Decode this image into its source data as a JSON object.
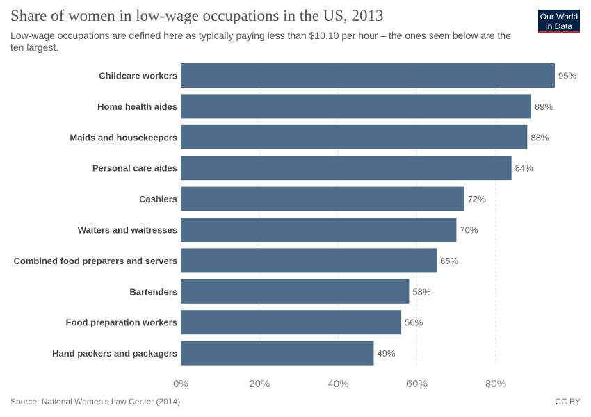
{
  "header": {
    "title": "Share of women in low-wage occupations in the US, 2013",
    "subtitle": "Low-wage occupations are defined here as typically paying less than $10.10 per hour – the ones seen below are the ten largest.",
    "logo_line1": "Our World",
    "logo_line2": "in Data"
  },
  "footer": {
    "source": "Source: National Women's Law Center (2014)",
    "license": "CC BY"
  },
  "colors": {
    "bar": "#4e6d8a",
    "logo_bg": "#002147",
    "logo_accent": "#ce261e"
  },
  "chart_data": {
    "type": "bar",
    "orientation": "horizontal",
    "categories": [
      "Childcare workers",
      "Home health aides",
      "Maids and housekeepers",
      "Personal care aides",
      "Cashiers",
      "Waiters and waitresses",
      "Combined food preparers and servers",
      "Bartenders",
      "Food preparation workers",
      "Hand packers and packagers"
    ],
    "values": [
      95,
      89,
      88,
      84,
      72,
      70,
      65,
      58,
      56,
      49
    ],
    "value_labels": [
      "95%",
      "89%",
      "88%",
      "84%",
      "72%",
      "70%",
      "65%",
      "58%",
      "56%",
      "49%"
    ],
    "xlim": [
      0,
      95
    ],
    "xticks": [
      0,
      20,
      40,
      60,
      80
    ],
    "xtick_labels": [
      "0%",
      "20%",
      "40%",
      "60%",
      "80%"
    ],
    "grid": true
  }
}
